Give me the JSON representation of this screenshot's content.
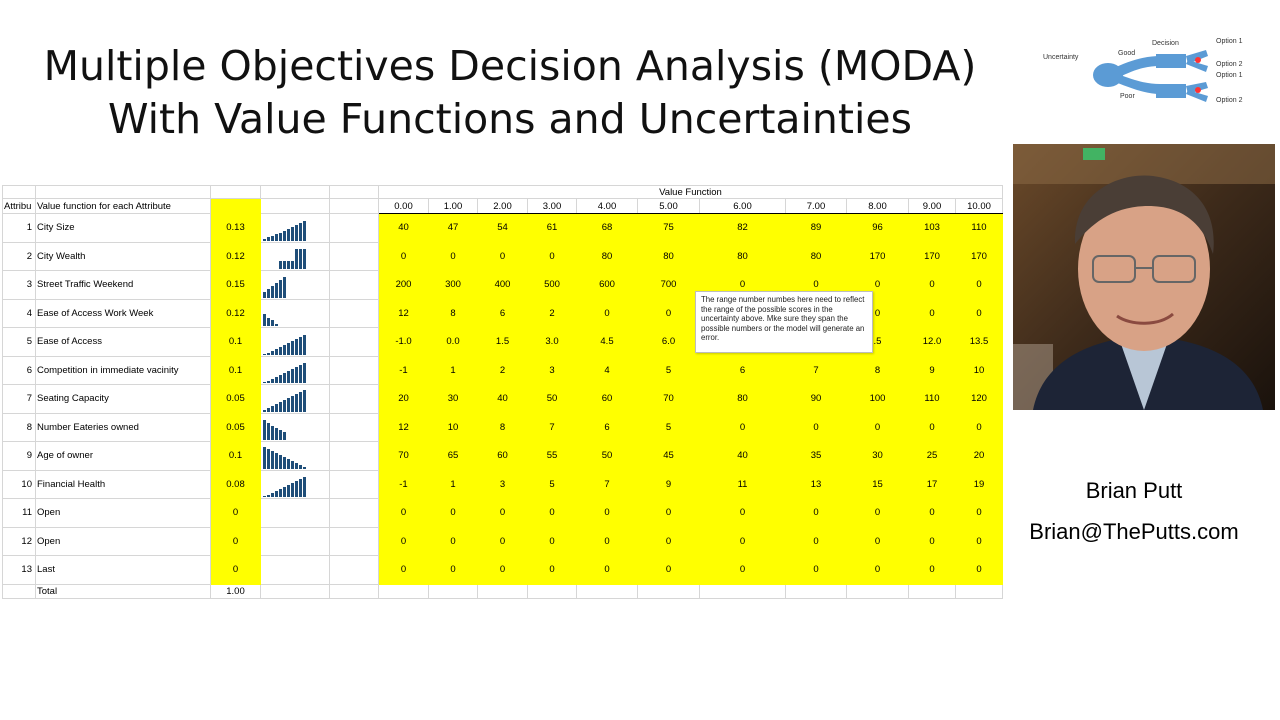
{
  "slide": {
    "title_line1": "Multiple Objectives Decision Analysis (MODA)",
    "title_line2": "With Value Functions and Uncertainties"
  },
  "diagram": {
    "uncertainty": "Uncertainty",
    "decision": "Decision",
    "good": "Good",
    "poor": "Poor",
    "option1a": "Option 1",
    "option2a": "Option 2",
    "option1b": "Option 1",
    "option2b": "Option 2",
    "colors": {
      "node": "#5b9bd5",
      "leaf": "#ff3333"
    }
  },
  "author": {
    "name": "Brian Putt",
    "email": "Brian@ThePutts.com"
  },
  "sheet": {
    "vf_header": "Value Function",
    "col_attrib": "Attribu",
    "col_desc": "Value function for each Attribute",
    "scale": [
      "0.00",
      "1.00",
      "2.00",
      "3.00",
      "4.00",
      "5.00",
      "6.00",
      "7.00",
      "8.00",
      "9.00",
      "10.00"
    ],
    "highlight_color": "#ffff00",
    "bar_color": "#1f4e79",
    "rows": [
      {
        "num": "1",
        "name": "City Size",
        "weight": "0.13",
        "spark": [
          2,
          4,
          5,
          7,
          8,
          10,
          12,
          14,
          16,
          18,
          20
        ],
        "values": [
          "40",
          "47",
          "54",
          "61",
          "68",
          "75",
          "82",
          "89",
          "96",
          "103",
          "110"
        ]
      },
      {
        "num": "2",
        "name": "City Wealth",
        "weight": "0.12",
        "spark": [
          0,
          0,
          0,
          0,
          8,
          8,
          8,
          8,
          20,
          20,
          20
        ],
        "values": [
          "0",
          "0",
          "0",
          "0",
          "80",
          "80",
          "80",
          "80",
          "170",
          "170",
          "170"
        ]
      },
      {
        "num": "3",
        "name": "Street Traffic Weekend",
        "weight": "0.15",
        "spark": [
          6,
          9,
          12,
          15,
          18,
          21,
          0,
          0,
          0,
          0,
          0
        ],
        "values": [
          "200",
          "300",
          "400",
          "500",
          "600",
          "700",
          "0",
          "0",
          "0",
          "0",
          "0"
        ]
      },
      {
        "num": "4",
        "name": "Ease of Access Work Week",
        "weight": "0.12",
        "spark": [
          12,
          8,
          6,
          2,
          0,
          0,
          0,
          0,
          0,
          0,
          0
        ],
        "values": [
          "12",
          "8",
          "6",
          "2",
          "0",
          "0",
          "",
          "",
          "0",
          "0",
          "0"
        ]
      },
      {
        "num": "5",
        "name": "Ease of Access",
        "weight": "0.1",
        "spark": [
          1,
          2,
          4,
          6,
          8,
          10,
          12,
          14,
          16,
          18,
          20
        ],
        "values": [
          "-1.0",
          "0.0",
          "1.5",
          "3.0",
          "4.5",
          "6.0",
          "",
          "",
          ".5",
          "12.0",
          "13.5"
        ]
      },
      {
        "num": "6",
        "name": "Competition in immediate vacinity",
        "weight": "0.1",
        "spark": [
          1,
          2,
          4,
          6,
          8,
          10,
          12,
          14,
          16,
          18,
          20
        ],
        "values": [
          "-1",
          "1",
          "2",
          "3",
          "4",
          "5",
          "6",
          "7",
          "8",
          "9",
          "10"
        ]
      },
      {
        "num": "7",
        "name": "Seating Capacity",
        "weight": "0.05",
        "spark": [
          2,
          4,
          6,
          8,
          10,
          12,
          14,
          16,
          18,
          20,
          22
        ],
        "values": [
          "20",
          "30",
          "40",
          "50",
          "60",
          "70",
          "80",
          "90",
          "100",
          "110",
          "120"
        ]
      },
      {
        "num": "8",
        "name": "Number Eateries owned",
        "weight": "0.05",
        "spark": [
          20,
          17,
          14,
          12,
          10,
          8,
          0,
          0,
          0,
          0,
          0
        ],
        "values": [
          "12",
          "10",
          "8",
          "7",
          "6",
          "5",
          "0",
          "0",
          "0",
          "0",
          "0"
        ]
      },
      {
        "num": "9",
        "name": "Age of owner",
        "weight": "0.1",
        "spark": [
          22,
          20,
          18,
          16,
          14,
          12,
          10,
          8,
          6,
          4,
          2
        ],
        "values": [
          "70",
          "65",
          "60",
          "55",
          "50",
          "45",
          "40",
          "35",
          "30",
          "25",
          "20"
        ]
      },
      {
        "num": "10",
        "name": "Financial Health",
        "weight": "0.08",
        "spark": [
          1,
          2,
          4,
          6,
          8,
          10,
          12,
          14,
          16,
          18,
          20
        ],
        "values": [
          "-1",
          "1",
          "3",
          "5",
          "7",
          "9",
          "11",
          "13",
          "15",
          "17",
          "19"
        ]
      },
      {
        "num": "11",
        "name": "Open",
        "weight": "0",
        "spark": [],
        "values": [
          "0",
          "0",
          "0",
          "0",
          "0",
          "0",
          "0",
          "0",
          "0",
          "0",
          "0"
        ]
      },
      {
        "num": "12",
        "name": "Open",
        "weight": "0",
        "spark": [],
        "values": [
          "0",
          "0",
          "0",
          "0",
          "0",
          "0",
          "0",
          "0",
          "0",
          "0",
          "0"
        ]
      },
      {
        "num": "13",
        "name": "Last",
        "weight": "0",
        "spark": [],
        "values": [
          "0",
          "0",
          "0",
          "0",
          "0",
          "0",
          "0",
          "0",
          "0",
          "0",
          "0"
        ]
      }
    ],
    "total_label": "Total",
    "total_value": "1.00",
    "note": "The range number numbes here need to reflect the range of the possible scores in the uncertainty above.   Mke sure they span the possible numbers or the model will generate an error."
  }
}
